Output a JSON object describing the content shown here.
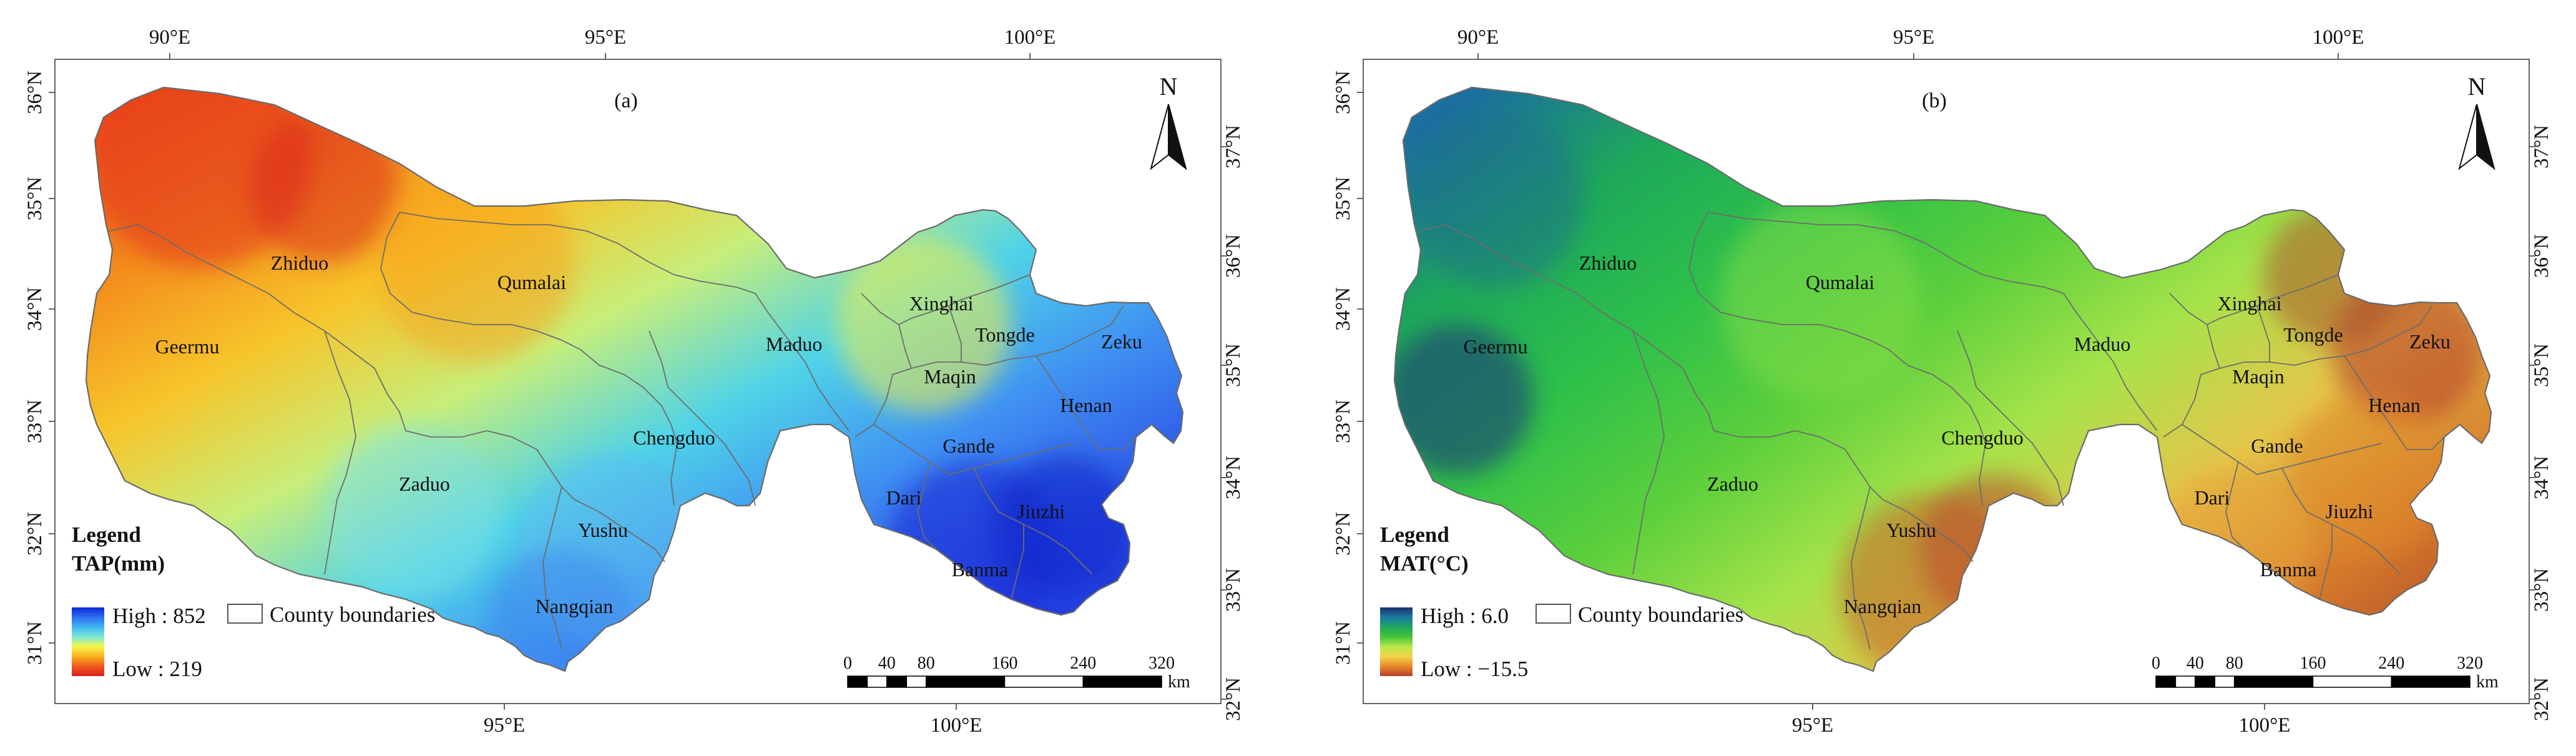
{
  "panels": [
    {
      "id": "a",
      "label": "(a)",
      "legend": {
        "title": "Legend",
        "variable": "TAP(mm)",
        "high": "High : 852",
        "low": "Low : 219",
        "boundaries": "County boundaries"
      },
      "ramp": [
        "#0a2ad8",
        "#2f6df2",
        "#3fb6f0",
        "#7fe8d8",
        "#f7f44a",
        "#f8b21d",
        "#ef5a1c",
        "#d9201e"
      ],
      "top_ticks": [
        "90°E",
        "95°E",
        "100°E"
      ],
      "bottom_ticks": [
        "95°E",
        "100°E"
      ],
      "left_ticks": [
        "36°N",
        "35°N",
        "34°N",
        "33°N",
        "32°N",
        "31°N"
      ],
      "right_ticks": [
        "37°N",
        "36°N",
        "35°N",
        "34°N",
        "33°N",
        "32°N"
      ],
      "counties": [
        "Zhiduo",
        "Qumalai",
        "Geermu",
        "Maduo",
        "Xinghai",
        "Tongde",
        "Zeku",
        "Maqin",
        "Henan",
        "Chengduo",
        "Gande",
        "Zaduo",
        "Dari",
        "Jiuzhi",
        "Yushu",
        "Banma",
        "Nangqian"
      ],
      "north": "N",
      "scale_labels": [
        "0",
        "40",
        "80",
        "160",
        "240",
        "320"
      ],
      "scale_unit": "km"
    },
    {
      "id": "b",
      "label": "(b)",
      "legend": {
        "title": "Legend",
        "variable": "MAT(°C)",
        "high": "High : 6.0",
        "low": "Low : −15.5",
        "boundaries": "County boundaries"
      },
      "ramp": [
        "#1a2f6e",
        "#1c7aa3",
        "#1ea85a",
        "#44c43a",
        "#b8e84a",
        "#f3d44a",
        "#e7892a",
        "#b9402a"
      ],
      "top_ticks": [
        "90°E",
        "95°E",
        "100°E"
      ],
      "bottom_ticks": [
        "95°E",
        "100°E"
      ],
      "left_ticks": [
        "36°N",
        "35°N",
        "34°N",
        "33°N",
        "32°N",
        "31°N"
      ],
      "right_ticks": [
        "37°N",
        "36°N",
        "35°N",
        "34°N",
        "33°N",
        "32°N"
      ],
      "counties": [
        "Zhiduo",
        "Qumalai",
        "Geermu",
        "Maduo",
        "Xinghai",
        "Tongde",
        "Zeku",
        "Maqin",
        "Henan",
        "Chengduo",
        "Gande",
        "Zaduo",
        "Dari",
        "Jiuzhi",
        "Yushu",
        "Banma",
        "Nangqian"
      ],
      "north": "N",
      "scale_labels": [
        "0",
        "40",
        "80",
        "160",
        "240",
        "320"
      ],
      "scale_unit": "km"
    }
  ]
}
